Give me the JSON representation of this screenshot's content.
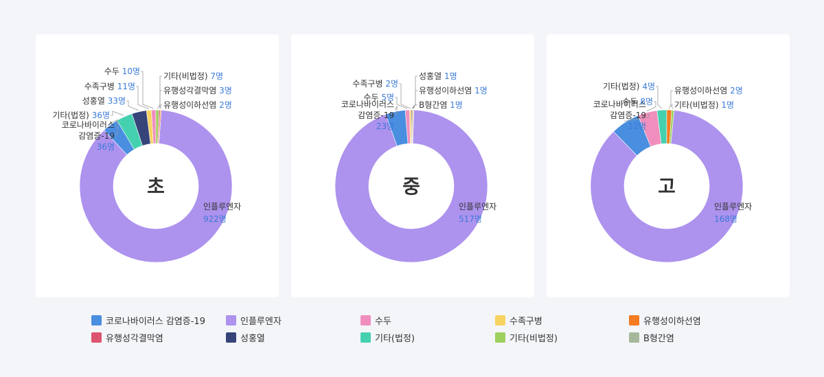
{
  "colors": {
    "covid": "#4a8ee0",
    "flu": "#ad92ee",
    "chickenpox": "#f08fbd",
    "hfmd": "#f7d462",
    "parotitis": "#f47b20",
    "meningitis": "#dd5470",
    "scarlet": "#36447a",
    "other_legal": "#45d1b0",
    "other_nonlegal": "#9ed060",
    "hepb": "#a6b89b"
  },
  "legend": [
    {
      "key": "covid",
      "label": "코로나바이러스 감염증-19"
    },
    {
      "key": "flu",
      "label": "인플루엔자"
    },
    {
      "key": "chickenpox",
      "label": "수두"
    },
    {
      "key": "hfmd",
      "label": "수족구병"
    },
    {
      "key": "parotitis",
      "label": "유행성이하선염"
    },
    {
      "key": "meningitis",
      "label": "유행성각결막염"
    },
    {
      "key": "scarlet",
      "label": "성홍열"
    },
    {
      "key": "other_legal",
      "label": "기타(법정)"
    },
    {
      "key": "other_nonlegal",
      "label": "기타(비법정)"
    },
    {
      "key": "hepb",
      "label": "B형간염"
    }
  ],
  "chart_data": [
    {
      "type": "pie",
      "title": "초",
      "slices": [
        {
          "key": "flu",
          "value": 922,
          "label": [
            "인플루엔자"
          ],
          "value_label": "922명"
        },
        {
          "key": "covid",
          "value": 36,
          "label": [
            "코로나바이러스",
            "감염증-19"
          ],
          "value_label": "36명"
        },
        {
          "key": "other_legal",
          "value": 36,
          "label": [
            "기타(법정)"
          ],
          "value_label": "36명"
        },
        {
          "key": "scarlet",
          "value": 33,
          "label": [
            "성홍열"
          ],
          "value_label": "33명"
        },
        {
          "key": "hfmd",
          "value": 11,
          "label": [
            "수족구병"
          ],
          "value_label": "11명"
        },
        {
          "key": "chickenpox",
          "value": 10,
          "label": [
            "수두"
          ],
          "value_label": "10명"
        },
        {
          "key": "other_nonlegal",
          "value": 7,
          "label": [
            "기타(비법정)"
          ],
          "value_label": "7명"
        },
        {
          "key": "meningitis",
          "value": 3,
          "label": [
            "유행성각결막염"
          ],
          "value_label": "3명"
        },
        {
          "key": "parotitis",
          "value": 2,
          "label": [
            "유행성이하선염"
          ],
          "value_label": "2명"
        }
      ]
    },
    {
      "type": "pie",
      "title": "중",
      "slices": [
        {
          "key": "flu",
          "value": 517,
          "label": [
            "인플루엔자"
          ],
          "value_label": "517명"
        },
        {
          "key": "covid",
          "value": 23,
          "label": [
            "코로나바이러스",
            "감염증-19"
          ],
          "value_label": "23명"
        },
        {
          "key": "chickenpox",
          "value": 5,
          "label": [
            "수두"
          ],
          "value_label": "5명"
        },
        {
          "key": "hfmd",
          "value": 2,
          "label": [
            "수족구병"
          ],
          "value_label": "2명"
        },
        {
          "key": "scarlet",
          "value": 1,
          "label": [
            "성홍열"
          ],
          "value_label": "1명"
        },
        {
          "key": "parotitis",
          "value": 1,
          "label": [
            "유행성이하선염"
          ],
          "value_label": "1명"
        },
        {
          "key": "hepb",
          "value": 1,
          "label": [
            "B형간염"
          ],
          "value_label": "1명"
        }
      ]
    },
    {
      "type": "pie",
      "title": "고",
      "slices": [
        {
          "key": "flu",
          "value": 168,
          "label": [
            "인플루엔자"
          ],
          "value_label": "168명"
        },
        {
          "key": "covid",
          "value": 12,
          "label": [
            "코로나바이러스",
            "감염증-19"
          ],
          "value_label": "12명"
        },
        {
          "key": "chickenpox",
          "value": 8,
          "label": [
            "수두"
          ],
          "value_label": "8명"
        },
        {
          "key": "other_legal",
          "value": 4,
          "label": [
            "기타(법정)"
          ],
          "value_label": "4명"
        },
        {
          "key": "parotitis",
          "value": 2,
          "label": [
            "유행성이하선염"
          ],
          "value_label": "2명"
        },
        {
          "key": "other_nonlegal",
          "value": 1,
          "label": [
            "기타(비법정)"
          ],
          "value_label": "1명"
        }
      ]
    }
  ]
}
